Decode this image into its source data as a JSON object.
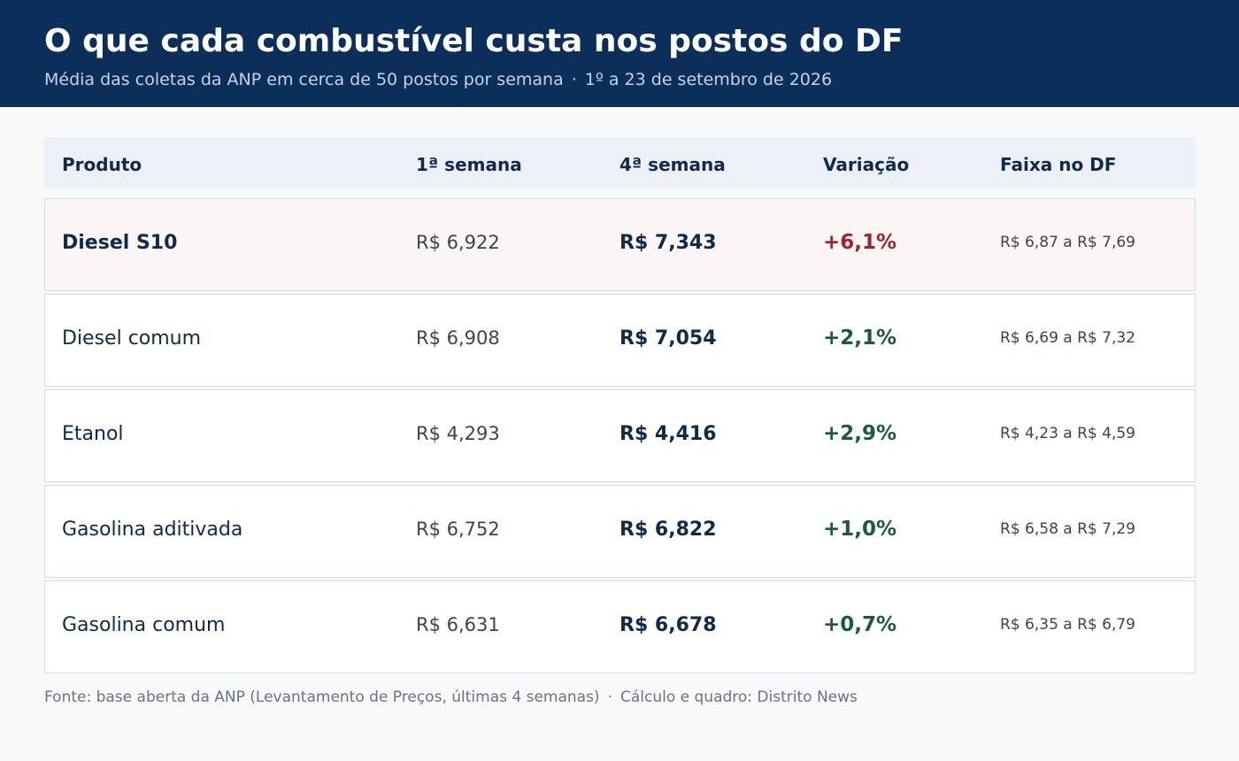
{
  "header": {
    "title": "O que cada combustível custa nos postos do DF",
    "subtitle_main": "Média das coletas da ANP em cerca de 50 postos por semana",
    "subtitle_separator": "·",
    "subtitle_period": "1º a 23 de setembro de 2026"
  },
  "colors": {
    "header_bg": "#0b2f5a",
    "rise_high": "#a3202e",
    "rise": "#1a5a3e",
    "highlight_row_bg": "#fcf5f6"
  },
  "chart_data": {
    "type": "table",
    "columns": [
      "Produto",
      "1ª semana",
      "4ª semana",
      "Variação",
      "Faixa no DF"
    ],
    "rows": [
      {
        "product": "Diesel S10",
        "week1": "R$ 6,922",
        "week4": "R$ 7,343",
        "change": "+6,1%",
        "range": "R$ 6,87 a R$ 7,69",
        "highlight": true
      },
      {
        "product": "Diesel comum",
        "week1": "R$ 6,908",
        "week4": "R$ 7,054",
        "change": "+2,1%",
        "range": "R$ 6,69 a R$ 7,32",
        "highlight": false
      },
      {
        "product": "Etanol",
        "week1": "R$ 4,293",
        "week4": "R$ 4,416",
        "change": "+2,9%",
        "range": "R$ 4,23 a R$ 4,59",
        "highlight": false
      },
      {
        "product": "Gasolina aditivada",
        "week1": "R$ 6,752",
        "week4": "R$ 6,822",
        "change": "+1,0%",
        "range": "R$ 6,58 a R$ 7,29",
        "highlight": false
      },
      {
        "product": "Gasolina comum",
        "week1": "R$ 6,631",
        "week4": "R$ 6,678",
        "change": "+0,7%",
        "range": "R$ 6,35 a R$ 6,79",
        "highlight": false
      }
    ]
  },
  "footer": {
    "source": "Fonte: base aberta da ANP (Levantamento de Preços, últimas 4 semanas)",
    "separator": "·",
    "credit": "Cálculo e quadro: Distrito News"
  }
}
